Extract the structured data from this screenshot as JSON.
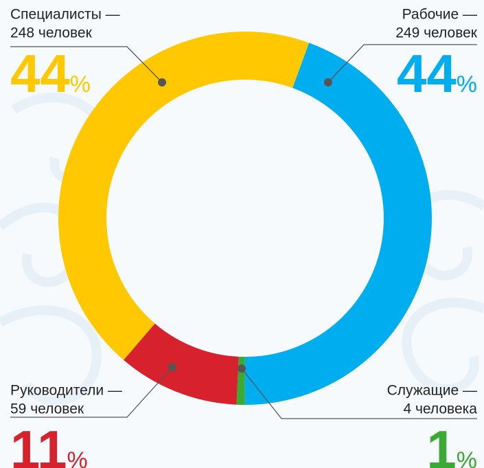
{
  "chart_data": {
    "type": "donut",
    "categories": [
      "Рабочие —",
      "Служащие —",
      "Руководители —",
      "Специалисты —"
    ],
    "values": [
      249,
      4,
      59,
      248
    ],
    "value_labels": [
      "249 человек",
      "4 человека",
      "59 человек",
      "248 человек"
    ],
    "percents": [
      44,
      1,
      11,
      44
    ],
    "unit": "%",
    "colors": [
      "#00aeef",
      "#3aaa35",
      "#d7212c",
      "#ffc800"
    ]
  }
}
